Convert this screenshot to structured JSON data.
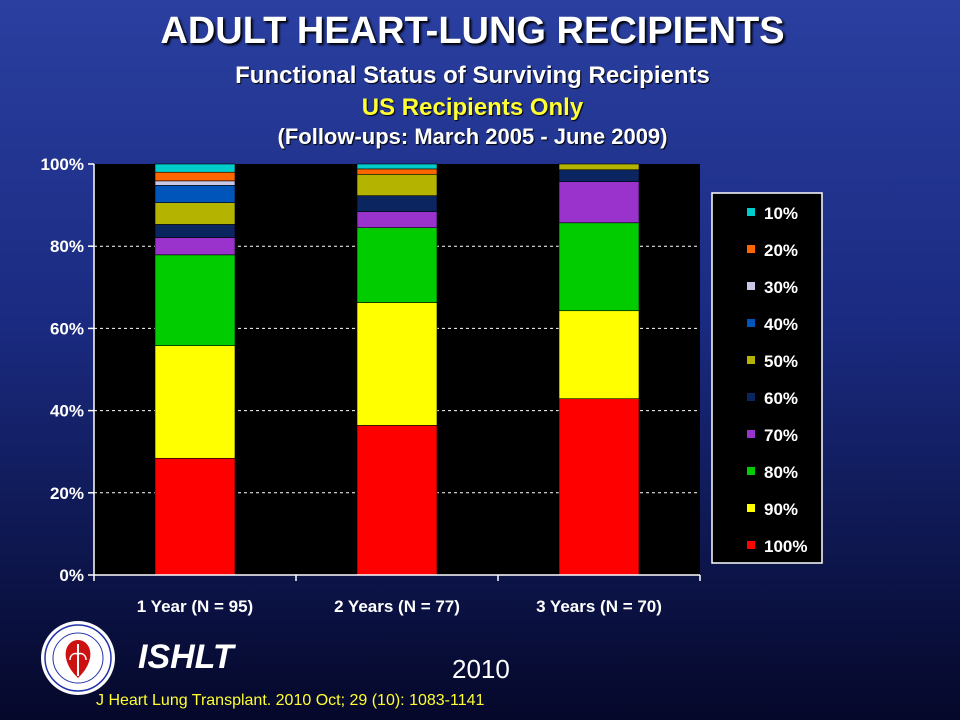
{
  "header": {
    "title": "ADULT HEART-LUNG RECIPIENTS",
    "subtitle": "Functional Status of Surviving Recipients",
    "subtitle2": "US Recipients Only",
    "subtitle3": "(Follow-ups: March 2005 - June 2009)"
  },
  "chart_data": {
    "type": "bar",
    "stacked": true,
    "percent_stacked": true,
    "categories": [
      "1 Year  (N = 95)",
      "2 Years  (N = 77)",
      "3 Years  (N = 70)"
    ],
    "ylim": [
      0,
      100
    ],
    "yticks": [
      "0%",
      "20%",
      "40%",
      "60%",
      "80%",
      "100%"
    ],
    "grid": true,
    "legend_position": "right",
    "series": [
      {
        "name": "100%",
        "color": "#ff0000",
        "values": [
          28.4,
          36.4,
          42.9
        ]
      },
      {
        "name": "90%",
        "color": "#ffff00",
        "values": [
          27.4,
          29.9,
          21.4
        ]
      },
      {
        "name": "80%",
        "color": "#00cc00",
        "values": [
          22.1,
          18.2,
          21.4
        ]
      },
      {
        "name": "70%",
        "color": "#9933cc",
        "values": [
          4.2,
          3.9,
          10.0
        ]
      },
      {
        "name": "60%",
        "color": "#0b2560",
        "values": [
          3.2,
          3.9,
          2.9
        ]
      },
      {
        "name": "50%",
        "color": "#b3b300",
        "values": [
          5.3,
          5.2,
          1.4
        ]
      },
      {
        "name": "40%",
        "color": "#0055bb",
        "values": [
          4.2,
          0.0,
          0.0
        ]
      },
      {
        "name": "30%",
        "color": "#c8c8e6",
        "values": [
          1.1,
          0.0,
          0.0
        ]
      },
      {
        "name": "20%",
        "color": "#ff6600",
        "values": [
          2.1,
          1.3,
          0.0
        ]
      },
      {
        "name": "10%",
        "color": "#00cccc",
        "values": [
          2.0,
          1.2,
          0.0
        ]
      }
    ]
  },
  "footer": {
    "org": "ISHLT",
    "year": "2010",
    "citation": "J Heart Lung Transplant. 2010 Oct; 29 (10): 1083-1141"
  }
}
